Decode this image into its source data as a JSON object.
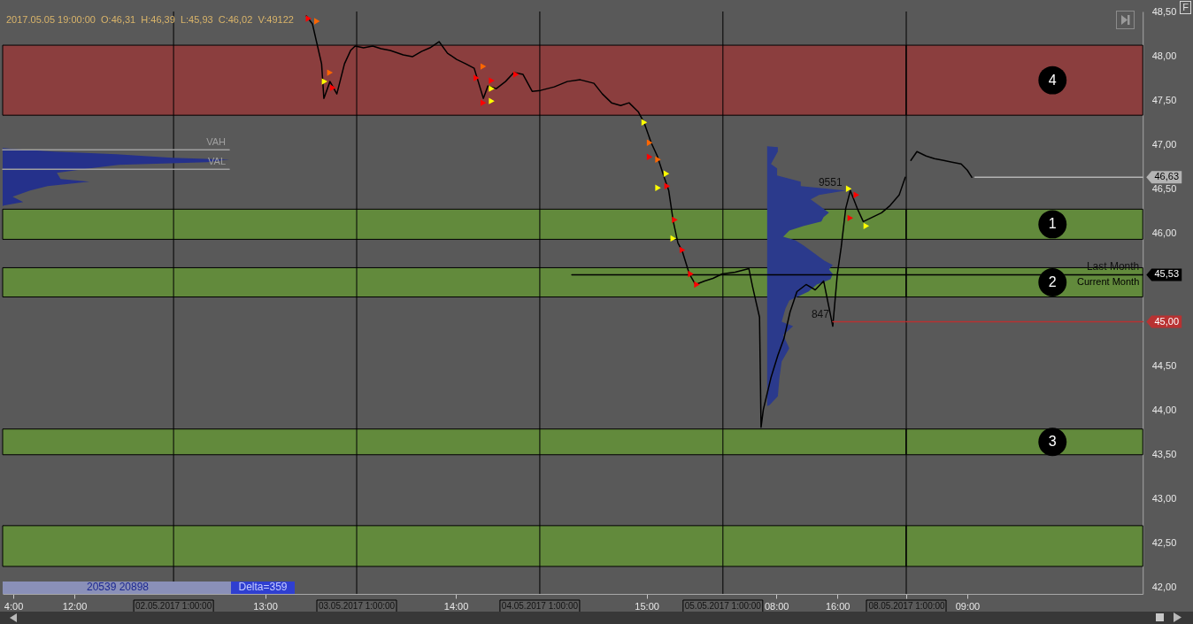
{
  "chart_data": [
    {
      "type": "line",
      "xlim": [
        "2017-05-01T02:36",
        "2017-05-06T01:00"
      ],
      "ylim": [
        41.93,
        48.5
      ],
      "tick_labels": "x",
      "xticks": [
        {
          "value": "2017-05-01T04:00",
          "label": "4:00"
        },
        {
          "value": "2017-05-01T12:00",
          "label": "12:00"
        },
        {
          "value": "2017-05-02T13:00",
          "label": "13:00"
        },
        {
          "value": "2017-05-03T14:00",
          "label": "14:00"
        },
        {
          "value": "2017-05-04T15:00",
          "label": "15:00"
        },
        {
          "value": "2017-05-05T08:00",
          "label": "08:00"
        },
        {
          "value": "2017-05-05T16:00",
          "label": "16:00"
        }
      ],
      "grid": false,
      "bands": [
        {
          "axis": "y",
          "from": 47.33,
          "to": 48.12,
          "color": "#8b3e3e"
        },
        {
          "axis": "y",
          "from": 45.93,
          "to": 46.27,
          "color": "#628a3c"
        },
        {
          "axis": "y",
          "from": 45.28,
          "to": 45.61,
          "color": "#628a3c"
        },
        {
          "axis": "y",
          "from": 43.5,
          "to": 43.79,
          "color": "#628a3c"
        },
        {
          "axis": "y",
          "from": 42.24,
          "to": 42.7,
          "color": "#628a3c"
        }
      ],
      "ref_lines": [
        {
          "axis": "x",
          "value": "2017-05-02T01:00",
          "label": "02.05.2017 1:00:00",
          "color": "#000000"
        },
        {
          "axis": "x",
          "value": "2017-05-03T01:00",
          "label": "03.05.2017 1:00:00",
          "color": "#000000"
        },
        {
          "axis": "x",
          "value": "2017-05-04T01:00",
          "label": "04.05.2017 1:00:00",
          "color": "#000000"
        },
        {
          "axis": "x",
          "value": "2017-05-05T01:00",
          "label": "05.05.2017 1:00:00",
          "color": "#000000"
        }
      ],
      "series": [
        {
          "type": "area",
          "color": "#25318b",
          "x": [
            "2017-05-01T02:36",
            "2017-05-01T03:54",
            "2017-05-01T09:18",
            "2017-05-01T17:30",
            "2017-05-02T00:48",
            "2017-05-02T08:18",
            "2017-05-02T05:24",
            "2017-05-01T17:48",
            "2017-05-01T14:00",
            "2017-05-01T09:42",
            "2017-05-01T10:12",
            "2017-05-01T14:00",
            "2017-05-01T08:30",
            "2017-05-01T06:12",
            "2017-05-01T03:54",
            "2017-05-01T05:18",
            "2017-05-01T02:42",
            "2017-05-01T02:36"
          ],
          "values": [
            46.96,
            46.95,
            46.92,
            46.89,
            46.85,
            46.83,
            46.8,
            46.77,
            46.73,
            46.68,
            46.61,
            46.58,
            46.53,
            46.48,
            46.41,
            46.35,
            46.31,
            46.3
          ]
        },
        {
          "type": "area",
          "color": "#2b3a8c",
          "x": [
            "2017-05-05T06:48",
            "2017-05-05T08:12",
            "2017-05-05T08:12",
            "2017-05-05T07:18",
            "2017-05-05T08:06",
            "2017-05-05T08:06",
            "2017-05-05T11:12",
            "2017-05-05T11:12",
            "2017-05-05T17:06",
            "2017-05-05T13:36",
            "2017-05-05T12:30",
            "2017-05-05T14:54",
            "2017-05-05T14:12",
            "2017-05-05T13:54",
            "2017-05-05T11:36",
            "2017-05-05T09:42",
            "2017-05-05T08:54",
            "2017-05-05T10:30",
            "2017-05-05T11:36",
            "2017-05-05T14:18",
            "2017-05-05T15:24",
            "2017-05-05T14:54",
            "2017-05-05T15:24",
            "2017-05-05T15:06",
            "2017-05-05T13:18",
            "2017-05-05T12:12",
            "2017-05-05T09:42",
            "2017-05-05T09:12",
            "2017-05-05T08:42",
            "2017-05-05T10:12",
            "2017-05-05T08:54",
            "2017-05-05T09:42",
            "2017-05-05T08:42",
            "2017-05-05T08:24",
            "2017-05-05T08:12",
            "2017-05-05T07:06",
            "2017-05-05T06:48"
          ],
          "values": [
            46.98,
            46.97,
            46.92,
            46.78,
            46.73,
            46.65,
            46.58,
            46.53,
            46.48,
            46.43,
            46.38,
            46.23,
            46.18,
            46.13,
            46.08,
            46.03,
            45.96,
            45.92,
            45.86,
            45.69,
            45.64,
            45.59,
            45.54,
            45.48,
            45.42,
            45.34,
            45.24,
            45.15,
            45.0,
            44.95,
            44.85,
            44.7,
            44.55,
            44.36,
            44.16,
            44.06,
            44.05
          ]
        },
        {
          "color": "#000000",
          "x": [
            "2017-05-02T18:24",
            "2017-05-02T19:12",
            "2017-05-02T20:24",
            "2017-05-02T20:42",
            "2017-05-02T21:30",
            "2017-05-02T22:24",
            "2017-05-02T23:24",
            "2017-05-03T00:12",
            "2017-05-03T00:48",
            "2017-05-03T01:54",
            "2017-05-03T03:06",
            "2017-05-03T04:12",
            "2017-05-03T05:24",
            "2017-05-03T07:06",
            "2017-05-03T08:18",
            "2017-05-03T09:30",
            "2017-05-03T10:36",
            "2017-05-03T11:48",
            "2017-05-03T12:54",
            "2017-05-03T14:06",
            "2017-05-03T15:18",
            "2017-05-03T16:24",
            "2017-05-03T17:36",
            "2017-05-03T18:12",
            "2017-05-03T19:18",
            "2017-05-03T20:30",
            "2017-05-03T21:36",
            "2017-05-03T22:48",
            "2017-05-04T00:00",
            "2017-05-04T01:06",
            "2017-05-04T02:54",
            "2017-05-04T04:36",
            "2017-05-04T06:18",
            "2017-05-04T08:06",
            "2017-05-04T09:12",
            "2017-05-04T10:24",
            "2017-05-04T11:36",
            "2017-05-04T12:42",
            "2017-05-04T13:54",
            "2017-05-04T14:42",
            "2017-05-04T15:36",
            "2017-05-04T16:24",
            "2017-05-04T17:18",
            "2017-05-04T17:54",
            "2017-05-04T18:30",
            "2017-05-04T19:06",
            "2017-05-04T19:42",
            "2017-05-04T20:36",
            "2017-05-04T21:24",
            "2017-05-04T22:36",
            "2017-05-04T23:42",
            "2017-05-05T00:54",
            "2017-05-05T02:36",
            "2017-05-05T04:24",
            "2017-05-05T04:54",
            "2017-05-05T05:48",
            "2017-05-05T06:00",
            "2017-05-05T06:18",
            "2017-05-05T07:18",
            "2017-05-05T08:12",
            "2017-05-05T09:00",
            "2017-05-05T09:48",
            "2017-05-05T10:42",
            "2017-05-05T11:54",
            "2017-05-05T13:06",
            "2017-05-05T14:12",
            "2017-05-05T15:24",
            "2017-05-05T16:00",
            "2017-05-05T16:30",
            "2017-05-05T17:06",
            "2017-05-05T17:42",
            "2017-05-05T18:36",
            "2017-05-05T19:24",
            "2017-05-05T20:36",
            "2017-05-05T21:48",
            "2017-05-05T22:54",
            "2017-05-06T00:06",
            "2017-05-06T00:54"
          ],
          "values": [
            48.45,
            48.36,
            47.91,
            47.52,
            47.71,
            47.57,
            47.91,
            48.06,
            48.11,
            48.09,
            48.11,
            48.08,
            48.06,
            48.01,
            47.99,
            48.05,
            48.09,
            48.16,
            48.03,
            47.96,
            47.91,
            47.86,
            47.52,
            47.66,
            47.63,
            47.71,
            47.81,
            47.79,
            47.6,
            47.61,
            47.65,
            47.71,
            47.73,
            47.69,
            47.57,
            47.47,
            47.44,
            47.47,
            47.37,
            47.24,
            47.02,
            46.87,
            46.63,
            46.48,
            46.13,
            45.89,
            45.79,
            45.54,
            45.42,
            45.46,
            45.49,
            45.54,
            45.56,
            45.6,
            45.39,
            45.05,
            43.81,
            44.01,
            44.37,
            44.62,
            44.81,
            45.11,
            45.34,
            45.42,
            45.36,
            45.46,
            44.95,
            45.54,
            45.84,
            46.28,
            46.48,
            46.28,
            46.13,
            46.18,
            46.23,
            46.31,
            46.43,
            46.63
          ]
        },
        {
          "name": "VAH",
          "color": "#a0a0a0",
          "x": [
            "2017-05-01T02:36",
            "2017-05-02T08:18"
          ],
          "values": [
            46.94,
            46.94
          ]
        },
        {
          "name": "VAL",
          "color": "#a0a0a0",
          "x": [
            "2017-05-01T02:36",
            "2017-05-02T08:18"
          ],
          "values": [
            46.72,
            46.72
          ]
        },
        {
          "color": "#000000",
          "x": [
            "2017-05-04T05:12",
            "2017-05-06T01:00"
          ],
          "values": [
            45.53,
            45.53
          ]
        },
        {
          "color": "#b83232",
          "x": [
            "2017-05-05T15:24",
            "2017-05-06T01:00"
          ],
          "values": [
            45,
            45
          ]
        },
        {
          "type": "scatter",
          "marker": "triangle",
          "color": "#ff0000",
          "x": [
            "2017-05-02T18:42",
            "2017-05-02T21:54",
            "2017-05-03T16:42",
            "2017-05-03T18:42",
            "2017-05-03T17:36",
            "2017-05-03T21:54",
            "2017-05-04T15:24",
            "2017-05-04T17:42",
            "2017-05-04T18:42",
            "2017-05-04T19:42",
            "2017-05-04T20:48",
            "2017-05-04T21:36",
            "2017-05-05T18:30",
            "2017-05-05T17:42"
          ],
          "values": [
            48.42,
            47.64,
            47.75,
            47.72,
            47.47,
            47.79,
            46.86,
            46.53,
            46.15,
            45.81,
            45.54,
            45.42,
            46.43,
            46.17
          ]
        },
        {
          "type": "scatter",
          "marker": "triangle",
          "color": "#ff6600",
          "x": [
            "2017-05-02T19:48",
            "2017-05-02T21:30",
            "2017-05-03T17:36",
            "2017-05-04T15:24",
            "2017-05-04T16:30"
          ],
          "values": [
            48.39,
            47.81,
            47.88,
            47.02,
            46.83
          ]
        },
        {
          "type": "scatter",
          "marker": "triangle",
          "color": "#ffff00",
          "x": [
            "2017-05-02T20:48",
            "2017-05-03T18:42",
            "2017-05-03T18:42",
            "2017-05-04T14:42",
            "2017-05-04T17:36",
            "2017-05-04T16:30",
            "2017-05-04T18:30",
            "2017-05-05T19:48",
            "2017-05-05T17:30"
          ],
          "values": [
            47.71,
            47.63,
            47.49,
            47.25,
            46.67,
            46.51,
            45.94,
            46.08,
            46.5
          ]
        }
      ],
      "annotations": [
        "2017.05.05 19:00:00  O:46,31  H:46,39  L:45,93  C:46,02  V:49122",
        "20539 20898",
        "Delta=359",
        {
          "text": "9551",
          "x": "2017-05-05T17:06",
          "y": 46.48
        },
        {
          "text": "847",
          "x": "2017-05-05T15:24",
          "y": 45.0
        }
      ]
    },
    {
      "type": "line",
      "xlim": [
        "2017-05-08T01:00",
        "2017-05-09T08:00"
      ],
      "ylim": [
        41.93,
        48.5
      ],
      "xticks": [
        {
          "value": "2017-05-08T01:00",
          "label": "08.05.2017 1:00:00"
        },
        {
          "value": "2017-05-08T09:00",
          "label": "09:00"
        }
      ],
      "yticks": [
        {
          "value": 48.5,
          "label": "48,50"
        },
        {
          "value": 48,
          "label": "48,00"
        },
        {
          "value": 47.5,
          "label": "47,50"
        },
        {
          "value": 47,
          "label": "47,00"
        },
        {
          "value": 46.5,
          "label": "46,50"
        },
        {
          "value": 46,
          "label": "46,00"
        },
        {
          "value": 44.5,
          "label": "44,50"
        },
        {
          "value": 44,
          "label": "44,00"
        },
        {
          "value": 43.5,
          "label": "43,50"
        },
        {
          "value": 43,
          "label": "43,00"
        },
        {
          "value": 42.5,
          "label": "42,50"
        },
        {
          "value": 42,
          "label": "42,00"
        }
      ],
      "grid": false,
      "bands": [
        {
          "axis": "y",
          "from": 47.33,
          "to": 48.12,
          "label": "4",
          "color": "#8b3e3e"
        },
        {
          "axis": "y",
          "from": 45.93,
          "to": 46.27,
          "label": "1",
          "color": "#628a3c"
        },
        {
          "axis": "y",
          "from": 45.28,
          "to": 45.61,
          "label": "2",
          "color": "#628a3c"
        },
        {
          "axis": "y",
          "from": 43.5,
          "to": 43.79,
          "label": "3",
          "color": "#628a3c"
        },
        {
          "axis": "y",
          "from": 42.24,
          "to": 42.7,
          "color": "#628a3c"
        }
      ],
      "ref_lines": [
        {
          "axis": "x",
          "value": "2017-05-08T01:00",
          "color": "#000000"
        }
      ],
      "series": [
        {
          "color": "#000000",
          "x": [
            "2017-05-08T01:36",
            "2017-05-08T02:24",
            "2017-05-08T03:36",
            "2017-05-08T04:42",
            "2017-05-08T05:54",
            "2017-05-08T07:00",
            "2017-05-08T08:12",
            "2017-05-08T09:00",
            "2017-05-08T09:36"
          ],
          "values": [
            46.82,
            46.92,
            46.87,
            46.84,
            46.82,
            46.8,
            46.78,
            46.71,
            46.63
          ]
        },
        {
          "name": "Current Month",
          "color": "#000000",
          "x": [
            "2017-05-08T01:00",
            "2017-05-09T08:00"
          ],
          "values": [
            45.53,
            45.53
          ],
          "value_labels": [
            null,
            "45,53"
          ]
        },
        {
          "color": "#b4b4b4",
          "x": [
            "2017-05-08T10:00",
            "2017-05-09T08:00"
          ],
          "values": [
            46.63,
            46.63
          ],
          "value_labels": [
            null,
            "46,63"
          ]
        },
        {
          "color": "#b83232",
          "x": [
            "2017-05-08T01:00",
            "2017-05-09T08:00"
          ],
          "values": [
            45,
            45
          ],
          "value_labels": [
            null,
            "45,00"
          ]
        }
      ],
      "annotations": [
        "F",
        {
          "text": "Last Month",
          "x": "2017-05-09T08:00",
          "y": 45.53
        }
      ]
    }
  ]
}
